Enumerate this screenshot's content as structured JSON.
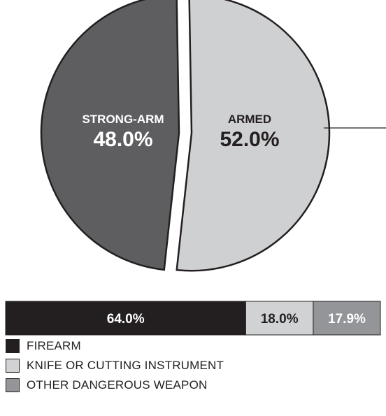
{
  "chart_data": [
    {
      "type": "pie",
      "title": "",
      "slices": [
        {
          "label": "STRONG-ARM",
          "value": 48.0,
          "display": "48.0%",
          "color": "#5e5e60"
        },
        {
          "label": "ARMED",
          "value": 52.0,
          "display": "52.0%",
          "color": "#cfd0d2",
          "exploded": true
        }
      ]
    },
    {
      "type": "bar",
      "orientation": "horizontal",
      "stacked": true,
      "title": "",
      "segments": [
        {
          "name": "FIREARM",
          "value": 64.0,
          "display": "64.0%",
          "color": "#231f20"
        },
        {
          "name": "KNIFE OR CUTTING INSTRUMENT",
          "value": 18.0,
          "display": "18.0%",
          "color": "#d1d2d4"
        },
        {
          "name": "OTHER DANGEROUS WEAPON",
          "value": 17.9,
          "display": "17.9%",
          "color": "#939598"
        }
      ]
    }
  ],
  "legend": {
    "items": [
      {
        "label": "FIREARM",
        "color": "#231f20"
      },
      {
        "label": "KNIFE OR CUTTING INSTRUMENT",
        "color": "#d1d2d4"
      },
      {
        "label": "OTHER DANGEROUS WEAPON",
        "color": "#939598"
      }
    ]
  }
}
